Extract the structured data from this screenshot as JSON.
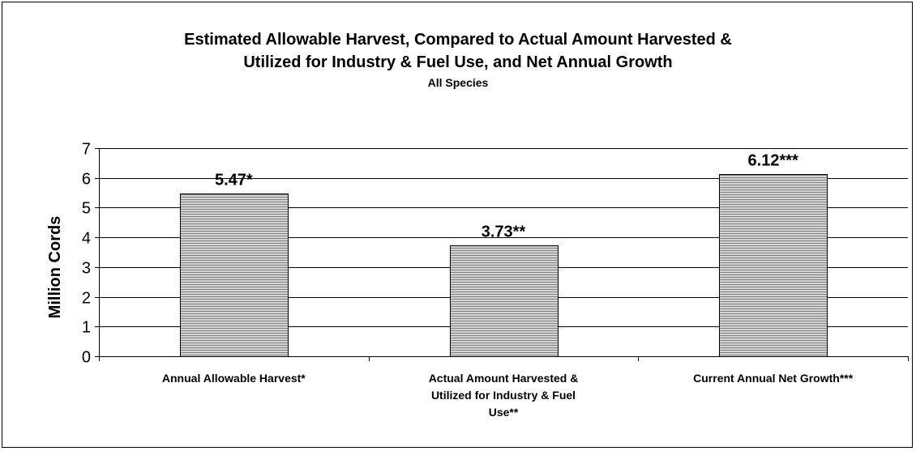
{
  "chart_data": {
    "type": "bar",
    "title": "Estimated Allowable Harvest, Compared to Actual Amount Harvested & Utilized for Industry & Fuel Use, and Net Annual Growth",
    "title_lines": [
      "Estimated Allowable Harvest, Compared to Actual Amount Harvested &",
      "Utilized for Industry & Fuel Use, and Net Annual Growth"
    ],
    "subtitle": "All Species",
    "xlabel": "",
    "ylabel": "Million Cords",
    "ylim": [
      0,
      7
    ],
    "yticks": [
      0,
      1,
      2,
      3,
      4,
      5,
      6,
      7
    ],
    "grid": true,
    "legend": "none",
    "categories": [
      "Annual Allowable Harvest*",
      "Actual Amount Harvested & Utilized for Industry & Fuel Use**",
      "Current Annual Net Growth***"
    ],
    "category_label_lines": [
      [
        "Annual Allowable Harvest*"
      ],
      [
        "Actual Amount Harvested &",
        "Utilized for Industry & Fuel",
        "Use**"
      ],
      [
        "Current Annual Net Growth***"
      ]
    ],
    "values": [
      5.47,
      3.73,
      6.12
    ],
    "data_labels": [
      "5.47*",
      "3.73**",
      "6.12***"
    ],
    "bar_fill": "#c0c0c0",
    "bar_stripe": "#7a7a7a"
  }
}
